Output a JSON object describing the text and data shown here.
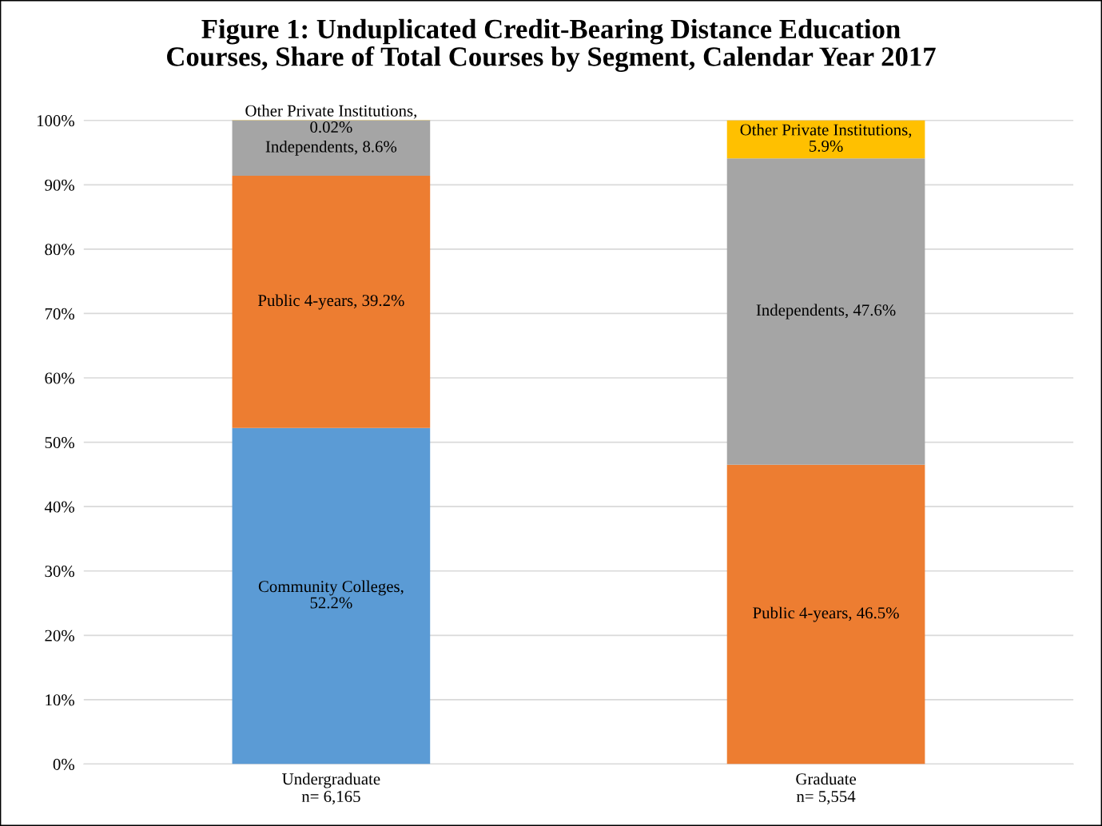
{
  "chart_data": {
    "type": "bar",
    "stacked": true,
    "title": "Figure 1: Unduplicated Credit-Bearing Distance Education\nCourses, Share of Total Courses by Segment, Calendar Year 2017",
    "categories": [
      "Undergraduate\nn= 6,165",
      "Graduate\nn= 5,554"
    ],
    "series": [
      {
        "color": "#5b9bd5",
        "values": [
          52.2,
          null
        ],
        "value_labels": [
          "Community Colleges,\n52.2%",
          null
        ]
      },
      {
        "color": "#ed7d31",
        "values": [
          39.2,
          46.5
        ],
        "value_labels": [
          "Public 4-years, 39.2%",
          "Public 4-years, 46.5%"
        ]
      },
      {
        "color": "#a5a5a5",
        "values": [
          8.6,
          47.6
        ],
        "value_labels": [
          "Independents, 8.6%",
          "Independents, 47.6%"
        ]
      },
      {
        "color": "#ffc000",
        "values": [
          0.02,
          5.9
        ],
        "value_labels": [
          "Other Private Institutions,\n0.02%",
          "Other Private Institutions,\n5.9%"
        ]
      }
    ],
    "ylim": [
      0,
      100.1
    ],
    "yticks": [
      {
        "value": 0,
        "label": "0%"
      },
      {
        "value": 10,
        "label": "10%"
      },
      {
        "value": 20,
        "label": "20%"
      },
      {
        "value": 30,
        "label": "30%"
      },
      {
        "value": 40,
        "label": "40%"
      },
      {
        "value": 50,
        "label": "50%"
      },
      {
        "value": 60,
        "label": "60%"
      },
      {
        "value": 70,
        "label": "70%"
      },
      {
        "value": 80,
        "label": "80%"
      },
      {
        "value": 90,
        "label": "90%"
      },
      {
        "value": 100,
        "label": "100%"
      }
    ],
    "grid": "y",
    "legend": false
  }
}
